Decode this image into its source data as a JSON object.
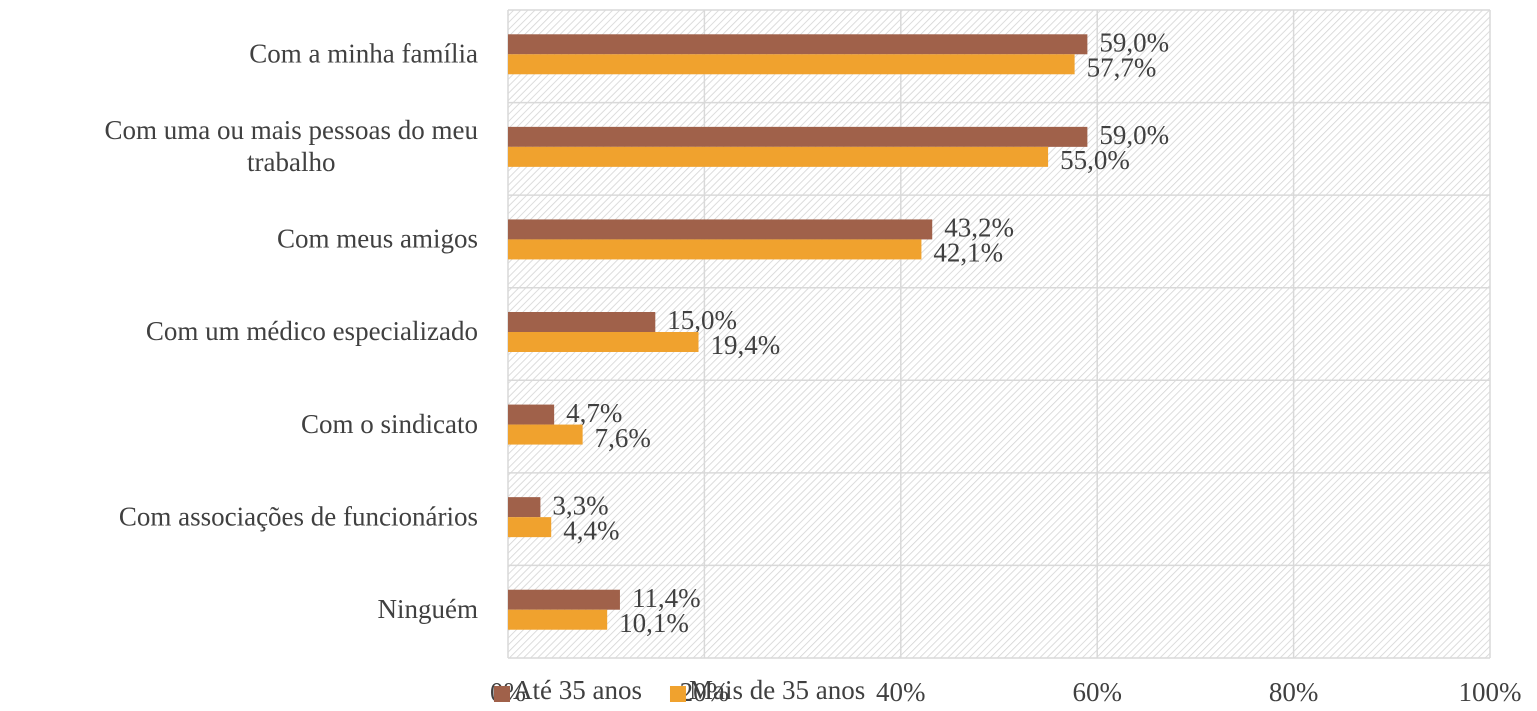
{
  "chart_data": {
    "type": "bar",
    "orientation": "horizontal",
    "categories": [
      "Com a minha família",
      "Com uma ou mais pessoas do meu trabalho",
      "Com meus amigos",
      "Com um médico especializado",
      "Com o sindicato",
      "Com associações de funcionários",
      "Ninguém"
    ],
    "series": [
      {
        "name": "Até 35 anos",
        "color": "#a0614a",
        "values": [
          59.0,
          59.0,
          43.2,
          15.0,
          4.7,
          3.3,
          11.4
        ],
        "value_labels": [
          "59,0%",
          "59,0%",
          "43,2%",
          "15,0%",
          "4,7%",
          "3,3%",
          "11,4%"
        ]
      },
      {
        "name": "Mais de 35 anos",
        "color": "#f0a22e",
        "values": [
          57.7,
          55.0,
          42.1,
          19.4,
          7.6,
          4.4,
          10.1
        ],
        "value_labels": [
          "57,7%",
          "55,0%",
          "42,1%",
          "19,4%",
          "7,6%",
          "4,4%",
          "10,1%"
        ]
      }
    ],
    "xlim": [
      0,
      100
    ],
    "xticks": [
      {
        "value": 0,
        "label": "0%"
      },
      {
        "value": 20,
        "label": "20%"
      },
      {
        "value": 40,
        "label": "40%"
      },
      {
        "value": 60,
        "label": "60%"
      },
      {
        "value": 80,
        "label": "80%"
      },
      {
        "value": 100,
        "label": "100%"
      }
    ],
    "grid": true,
    "legend": "bottom"
  }
}
